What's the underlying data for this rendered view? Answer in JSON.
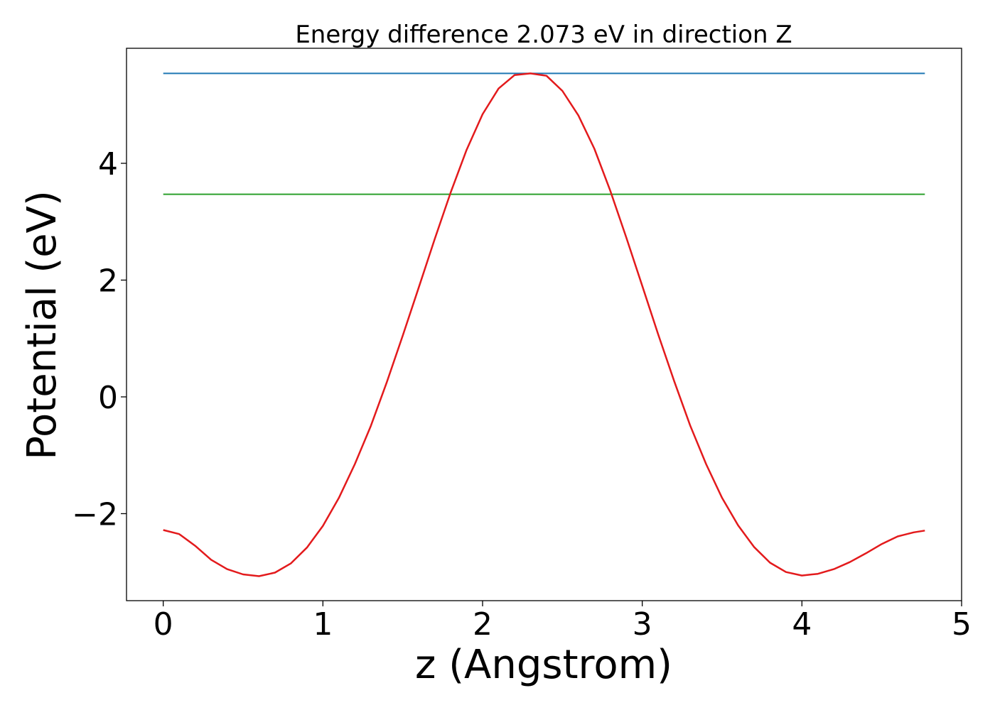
{
  "chart_data": {
    "type": "line",
    "title": "Energy difference 2.073 eV in direction Z",
    "xlabel": "z (Angstrom)",
    "ylabel": "Potential (eV)",
    "xlim": [
      -0.23,
      5.0
    ],
    "ylim": [
      -3.49,
      5.97
    ],
    "xticks": [
      0,
      1,
      2,
      3,
      4,
      5
    ],
    "xtick_labels": [
      "0",
      "1",
      "2",
      "3",
      "4",
      "5"
    ],
    "yticks": [
      -2,
      0,
      2,
      4
    ],
    "ytick_labels": [
      "−2",
      "0",
      "2",
      "4"
    ],
    "grid": false,
    "series": [
      {
        "color": "#1f77b4",
        "x": [
          0,
          4.77
        ],
        "y": [
          5.54,
          5.54
        ]
      },
      {
        "color": "#2ca02c",
        "x": [
          0,
          4.77
        ],
        "y": [
          3.47,
          3.47
        ]
      },
      {
        "color": "#e31a1c",
        "x": [
          0.0,
          0.1,
          0.2,
          0.3,
          0.4,
          0.5,
          0.6,
          0.7,
          0.8,
          0.9,
          1.0,
          1.1,
          1.2,
          1.3,
          1.4,
          1.5,
          1.6,
          1.7,
          1.8,
          1.9,
          2.0,
          2.1,
          2.2,
          2.3,
          2.4,
          2.5,
          2.6,
          2.7,
          2.8,
          2.9,
          3.0,
          3.1,
          3.2,
          3.3,
          3.4,
          3.5,
          3.6,
          3.7,
          3.8,
          3.9,
          4.0,
          4.1,
          4.2,
          4.3,
          4.4,
          4.5,
          4.6,
          4.7,
          4.77
        ],
        "y": [
          -2.28,
          -2.35,
          -2.55,
          -2.79,
          -2.95,
          -3.04,
          -3.07,
          -3.01,
          -2.85,
          -2.58,
          -2.21,
          -1.73,
          -1.15,
          -0.5,
          0.25,
          1.05,
          1.87,
          2.7,
          3.5,
          4.23,
          4.84,
          5.28,
          5.51,
          5.54,
          5.5,
          5.24,
          4.82,
          4.25,
          3.53,
          2.73,
          1.9,
          1.07,
          0.27,
          -0.49,
          -1.15,
          -1.73,
          -2.2,
          -2.57,
          -2.84,
          -3.0,
          -3.06,
          -3.03,
          -2.95,
          -2.83,
          -2.68,
          -2.52,
          -2.39,
          -2.32,
          -2.29
        ]
      }
    ]
  }
}
